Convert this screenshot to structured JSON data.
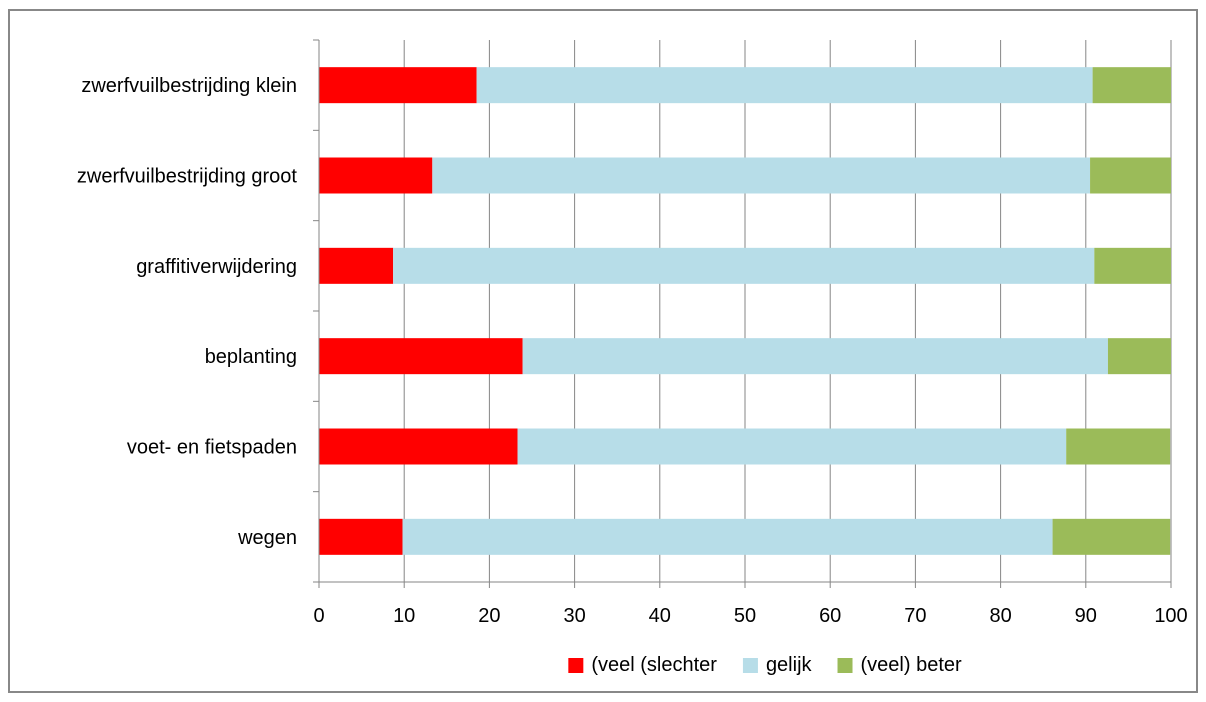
{
  "chart_data": {
    "type": "bar",
    "orientation": "horizontal",
    "stacked": true,
    "categories": [
      "zwerfvuilbestrijding klein",
      "zwerfvuilbestrijding groot",
      "graffitiverwijdering",
      "beplanting",
      "voet- en fietspaden",
      "wegen"
    ],
    "series": [
      {
        "name": "(veel (slechter",
        "color": "#ff0000",
        "values": [
          18.5,
          13.3,
          8.7,
          23.9,
          23.3,
          9.8
        ]
      },
      {
        "name": "gelijk",
        "color": "#b7dde8",
        "values": [
          72.3,
          77.2,
          82.3,
          68.7,
          64.4,
          76.3
        ]
      },
      {
        "name": "(veel) beter",
        "color": "#9bbb59",
        "values": [
          9.2,
          9.5,
          9.0,
          7.4,
          12.2,
          13.8
        ]
      }
    ],
    "xlim": [
      0,
      100
    ],
    "xticks": [
      0,
      10,
      20,
      30,
      40,
      50,
      60,
      70,
      80,
      90,
      100
    ],
    "grid": true,
    "legend_position": "bottom",
    "title": "",
    "xlabel": "",
    "ylabel": ""
  }
}
